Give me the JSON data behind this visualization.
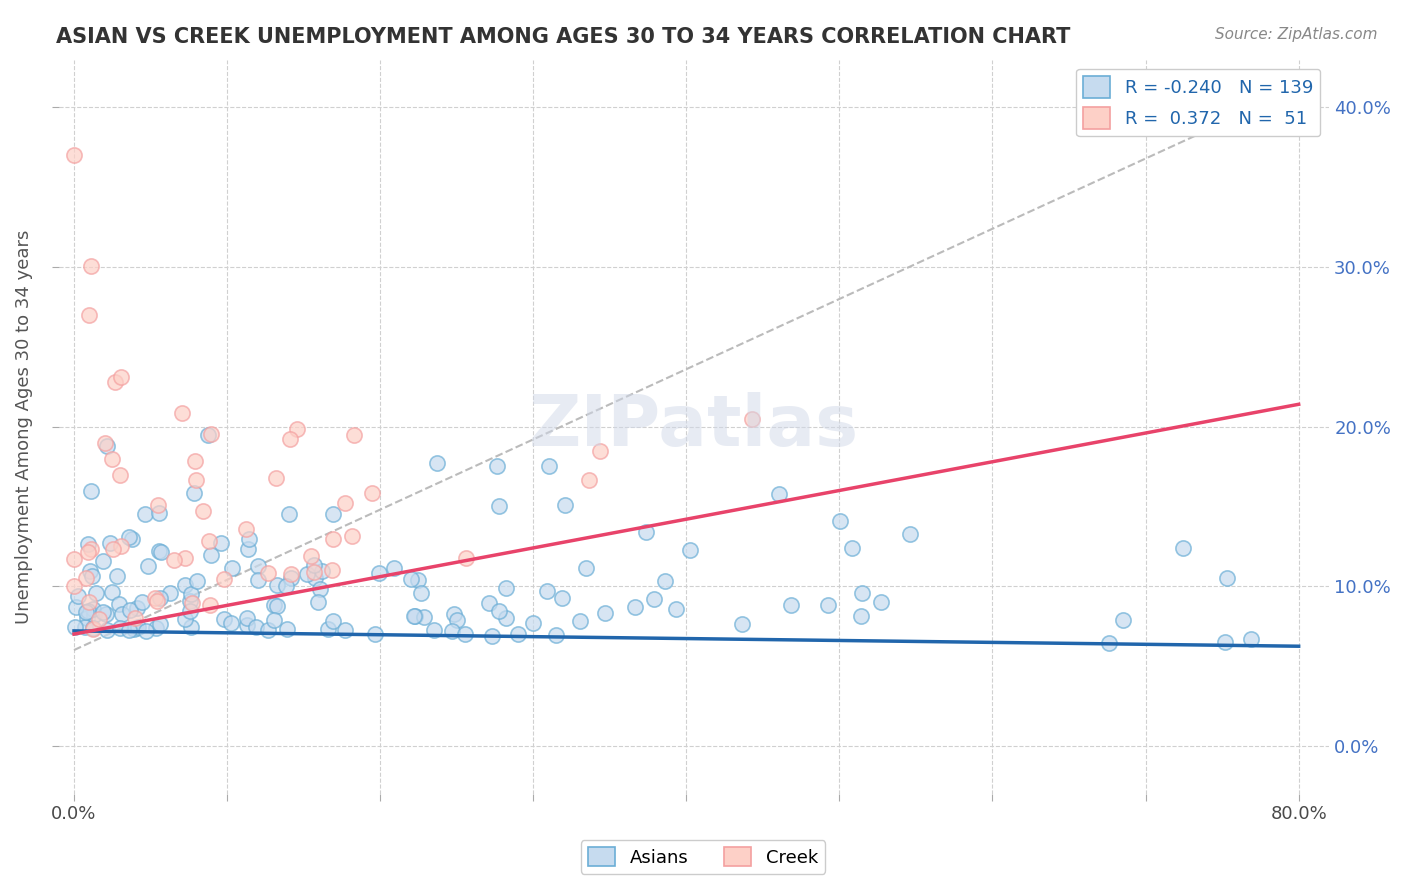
{
  "title": "ASIAN VS CREEK UNEMPLOYMENT AMONG AGES 30 TO 34 YEARS CORRELATION CHART",
  "source": "Source: ZipAtlas.com",
  "ylabel": "Unemployment Among Ages 30 to 34 years",
  "xlim": [
    -0.01,
    0.82
  ],
  "ylim": [
    -0.03,
    0.43
  ],
  "legend_r_asian": "-0.240",
  "legend_n_asian": "139",
  "legend_r_creek": "0.372",
  "legend_n_creek": "51",
  "blue_color": "#6baed6",
  "blue_fill": "#c6dbef",
  "pink_color": "#f4a0a0",
  "pink_fill": "#fdd0c7",
  "trend_blue_slope": -0.012,
  "trend_blue_intercept": 0.072,
  "trend_pink_slope": 0.18,
  "trend_pink_intercept": 0.07,
  "background_color": "#ffffff",
  "watermark": "ZIPatlas"
}
